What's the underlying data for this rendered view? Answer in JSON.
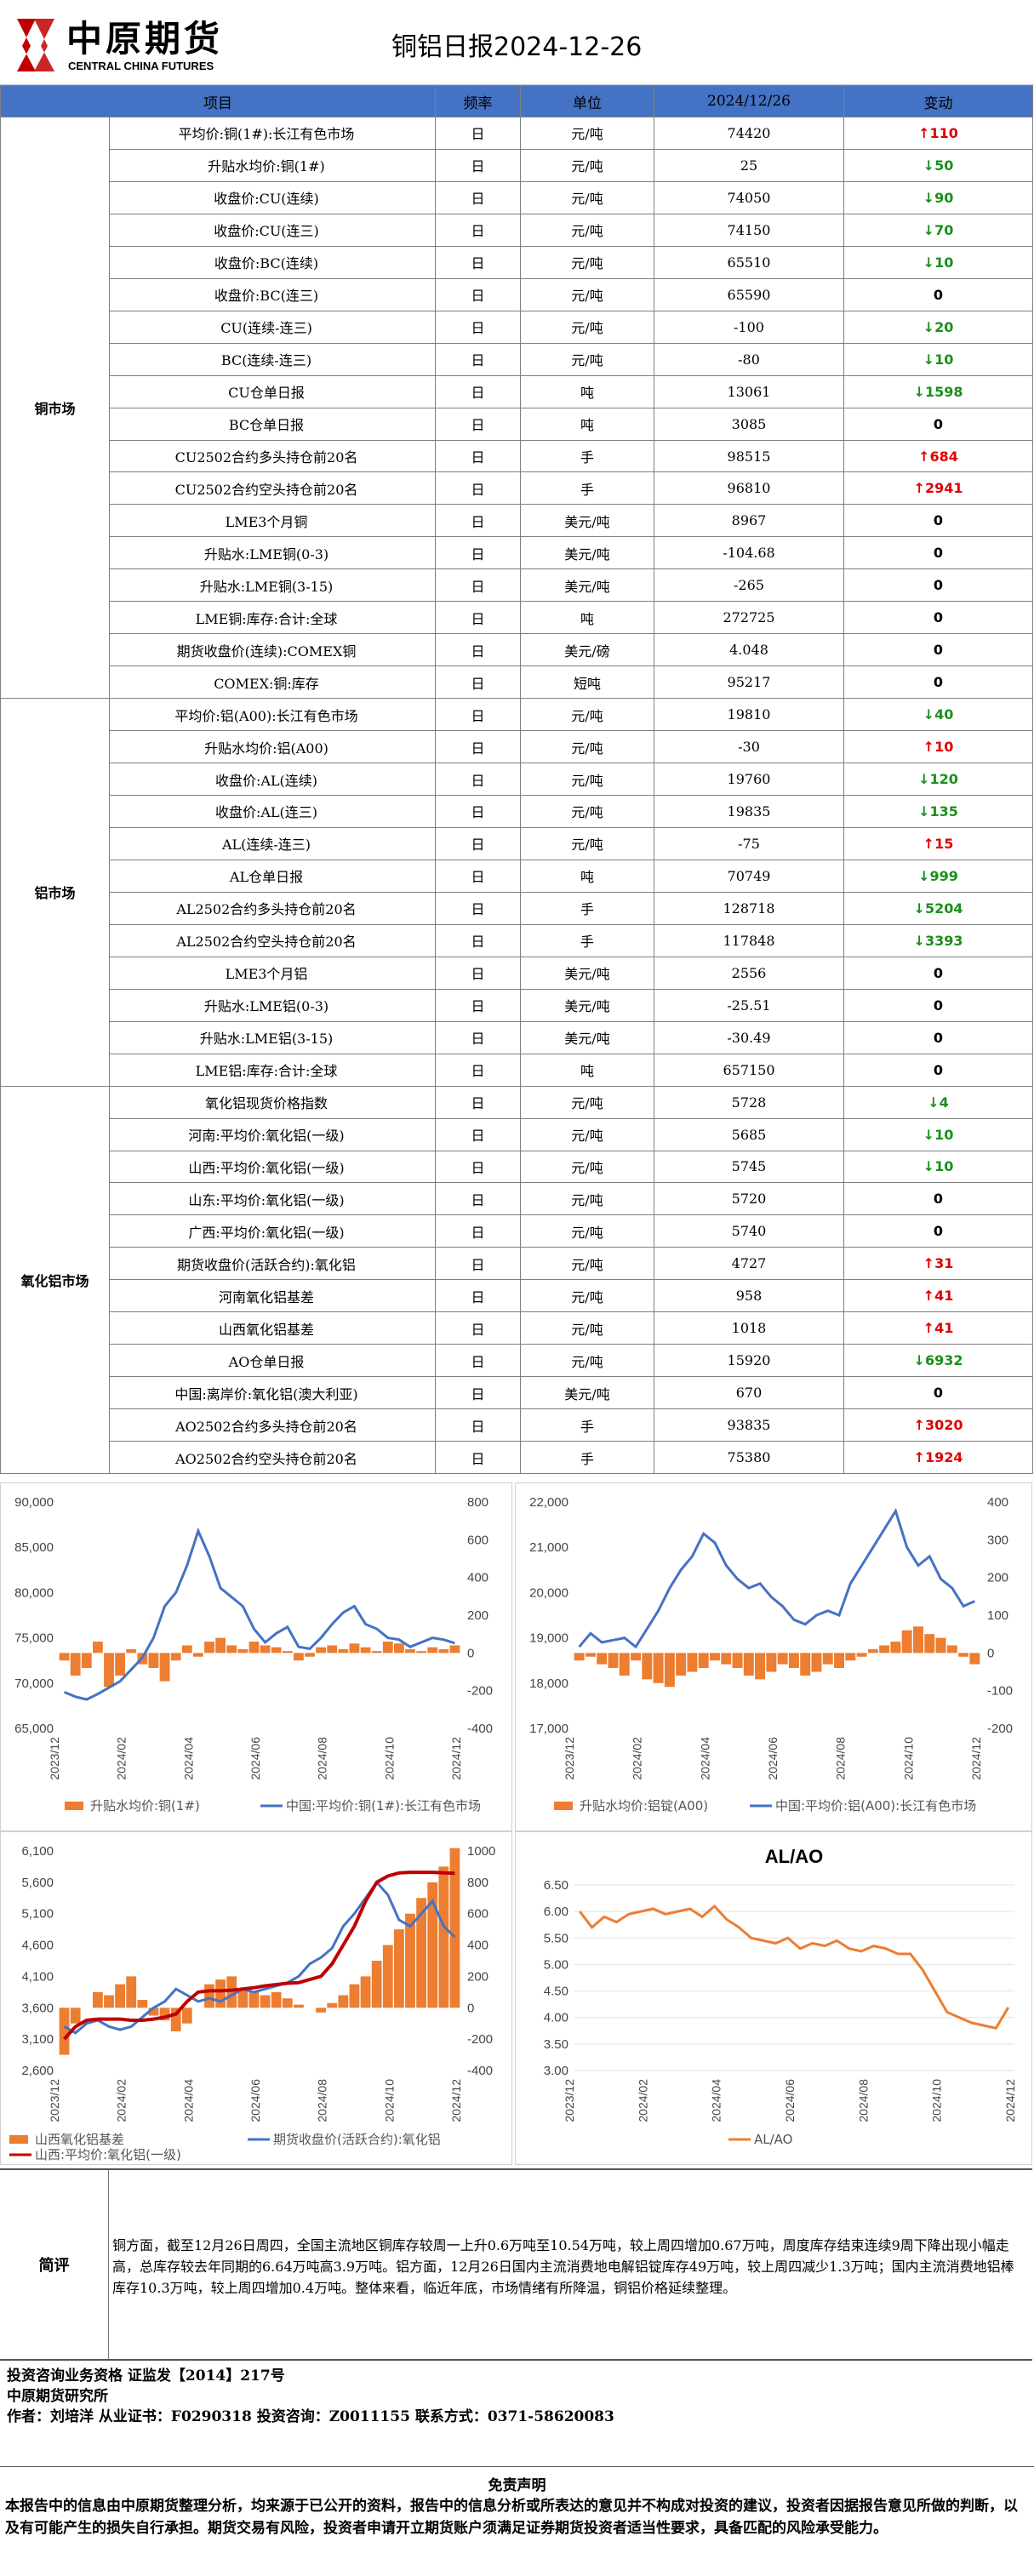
{
  "header": {
    "logo_cn": "中原期货",
    "logo_en": "CENTRAL CHINA FUTURES",
    "title": "铜铝日报2024-12-26"
  },
  "table": {
    "columns": [
      "项目",
      "频率",
      "单位",
      "2024/12/26",
      "变动"
    ],
    "groups": [
      {
        "name": "铜市场",
        "rows": [
          {
            "name": "平均价:铜(1#):长江有色市场",
            "freq": "日",
            "unit": "元/吨",
            "value": "74420",
            "dir": "up",
            "chg": "110"
          },
          {
            "name": "升贴水均价:铜(1#)",
            "freq": "日",
            "unit": "元/吨",
            "value": "25",
            "dir": "down",
            "chg": "50"
          },
          {
            "name": "收盘价:CU(连续)",
            "freq": "日",
            "unit": "元/吨",
            "value": "74050",
            "dir": "down",
            "chg": "90"
          },
          {
            "name": "收盘价:CU(连三)",
            "freq": "日",
            "unit": "元/吨",
            "value": "74150",
            "dir": "down",
            "chg": "70"
          },
          {
            "name": "收盘价:BC(连续)",
            "freq": "日",
            "unit": "元/吨",
            "value": "65510",
            "dir": "down",
            "chg": "10"
          },
          {
            "name": "收盘价:BC(连三)",
            "freq": "日",
            "unit": "元/吨",
            "value": "65590",
            "dir": "zero",
            "chg": "0"
          },
          {
            "name": "CU(连续-连三)",
            "freq": "日",
            "unit": "元/吨",
            "value": "-100",
            "dir": "down",
            "chg": "20"
          },
          {
            "name": "BC(连续-连三)",
            "freq": "日",
            "unit": "元/吨",
            "value": "-80",
            "dir": "down",
            "chg": "10"
          },
          {
            "name": "CU仓单日报",
            "freq": "日",
            "unit": "吨",
            "value": "13061",
            "dir": "down",
            "chg": "1598"
          },
          {
            "name": "BC仓单日报",
            "freq": "日",
            "unit": "吨",
            "value": "3085",
            "dir": "zero",
            "chg": "0"
          },
          {
            "name": "CU2502合约多头持仓前20名",
            "freq": "日",
            "unit": "手",
            "value": "98515",
            "dir": "up",
            "chg": "684"
          },
          {
            "name": "CU2502合约空头持仓前20名",
            "freq": "日",
            "unit": "手",
            "value": "96810",
            "dir": "up",
            "chg": "2941"
          },
          {
            "name": "LME3个月铜",
            "freq": "日",
            "unit": "美元/吨",
            "value": "8967",
            "dir": "zero",
            "chg": "0"
          },
          {
            "name": "升贴水:LME铜(0-3)",
            "freq": "日",
            "unit": "美元/吨",
            "value": "-104.68",
            "dir": "zero",
            "chg": "0"
          },
          {
            "name": "升贴水:LME铜(3-15)",
            "freq": "日",
            "unit": "美元/吨",
            "value": "-265",
            "dir": "zero",
            "chg": "0"
          },
          {
            "name": "LME铜:库存:合计:全球",
            "freq": "日",
            "unit": "吨",
            "value": "272725",
            "dir": "zero",
            "chg": "0"
          },
          {
            "name": "期货收盘价(连续):COMEX铜",
            "freq": "日",
            "unit": "美元/磅",
            "value": "4.048",
            "dir": "zero",
            "chg": "0"
          },
          {
            "name": "COMEX:铜:库存",
            "freq": "日",
            "unit": "短吨",
            "value": "95217",
            "dir": "zero",
            "chg": "0"
          }
        ]
      },
      {
        "name": "铝市场",
        "rows": [
          {
            "name": "平均价:铝(A00):长江有色市场",
            "freq": "日",
            "unit": "元/吨",
            "value": "19810",
            "dir": "down",
            "chg": "40"
          },
          {
            "name": "升贴水均价:铝(A00)",
            "freq": "日",
            "unit": "元/吨",
            "value": "-30",
            "dir": "up",
            "chg": "10"
          },
          {
            "name": "收盘价:AL(连续)",
            "freq": "日",
            "unit": "元/吨",
            "value": "19760",
            "dir": "down",
            "chg": "120"
          },
          {
            "name": "收盘价:AL(连三)",
            "freq": "日",
            "unit": "元/吨",
            "value": "19835",
            "dir": "down",
            "chg": "135"
          },
          {
            "name": "AL(连续-连三)",
            "freq": "日",
            "unit": "元/吨",
            "value": "-75",
            "dir": "up",
            "chg": "15"
          },
          {
            "name": "AL仓单日报",
            "freq": "日",
            "unit": "吨",
            "value": "70749",
            "dir": "down",
            "chg": "999"
          },
          {
            "name": "AL2502合约多头持仓前20名",
            "freq": "日",
            "unit": "手",
            "value": "128718",
            "dir": "down",
            "chg": "5204"
          },
          {
            "name": "AL2502合约空头持仓前20名",
            "freq": "日",
            "unit": "手",
            "value": "117848",
            "dir": "down",
            "chg": "3393"
          },
          {
            "name": "LME3个月铝",
            "freq": "日",
            "unit": "美元/吨",
            "value": "2556",
            "dir": "zero",
            "chg": "0"
          },
          {
            "name": "升贴水:LME铝(0-3)",
            "freq": "日",
            "unit": "美元/吨",
            "value": "-25.51",
            "dir": "zero",
            "chg": "0"
          },
          {
            "name": "升贴水:LME铝(3-15)",
            "freq": "日",
            "unit": "美元/吨",
            "value": "-30.49",
            "dir": "zero",
            "chg": "0"
          },
          {
            "name": "LME铝:库存:合计:全球",
            "freq": "日",
            "unit": "吨",
            "value": "657150",
            "dir": "zero",
            "chg": "0"
          }
        ]
      },
      {
        "name": "氧化铝市场",
        "rows": [
          {
            "name": "氧化铝现货价格指数",
            "freq": "日",
            "unit": "元/吨",
            "value": "5728",
            "dir": "down",
            "chg": "4"
          },
          {
            "name": "河南:平均价:氧化铝(一级)",
            "freq": "日",
            "unit": "元/吨",
            "value": "5685",
            "dir": "down",
            "chg": "10"
          },
          {
            "name": "山西:平均价:氧化铝(一级)",
            "freq": "日",
            "unit": "元/吨",
            "value": "5745",
            "dir": "down",
            "chg": "10"
          },
          {
            "name": "山东:平均价:氧化铝(一级)",
            "freq": "日",
            "unit": "元/吨",
            "value": "5720",
            "dir": "zero",
            "chg": "0"
          },
          {
            "name": "广西:平均价:氧化铝(一级)",
            "freq": "日",
            "unit": "元/吨",
            "value": "5740",
            "dir": "zero",
            "chg": "0"
          },
          {
            "name": "期货收盘价(活跃合约):氧化铝",
            "freq": "日",
            "unit": "元/吨",
            "value": "4727",
            "dir": "up",
            "chg": "31"
          },
          {
            "name": "河南氧化铝基差",
            "freq": "日",
            "unit": "元/吨",
            "value": "958",
            "dir": "up",
            "chg": "41"
          },
          {
            "name": "山西氧化铝基差",
            "freq": "日",
            "unit": "元/吨",
            "value": "1018",
            "dir": "up",
            "chg": "41"
          },
          {
            "name": "AO仓单日报",
            "freq": "日",
            "unit": "元/吨",
            "value": "15920",
            "dir": "down",
            "chg": "6932"
          },
          {
            "name": "中国:离岸价:氧化铝(澳大利亚)",
            "freq": "日",
            "unit": "美元/吨",
            "value": "670",
            "dir": "zero",
            "chg": "0"
          },
          {
            "name": "AO2502合约多头持仓前20名",
            "freq": "日",
            "unit": "手",
            "value": "93835",
            "dir": "up",
            "chg": "3020"
          },
          {
            "name": "AO2502合约空头持仓前20名",
            "freq": "日",
            "unit": "手",
            "value": "75380",
            "dir": "up",
            "chg": "1924"
          }
        ]
      }
    ]
  },
  "colors": {
    "header_blue": "#4472c4",
    "up": "#e00000",
    "down": "#1a8f1a",
    "bar_orange": "#ed7d31",
    "line_blue": "#4472c4",
    "line_red": "#c00000"
  },
  "chart_data": [
    {
      "type": "bar+line",
      "x_ticks": [
        "2023/12",
        "2024/02",
        "2024/04",
        "2024/06",
        "2024/08",
        "2024/10",
        "2024/12"
      ],
      "left_axis": [
        65000,
        70000,
        75000,
        80000,
        85000,
        90000
      ],
      "right_axis": [
        -400,
        -200,
        0,
        200,
        400,
        600,
        800
      ],
      "series": [
        {
          "name": "升贴水均价:铜(1#)",
          "type": "bar",
          "axis": "right",
          "values": [
            -40,
            -120,
            -80,
            60,
            -180,
            -120,
            20,
            -60,
            -80,
            -150,
            -40,
            40,
            -20,
            60,
            80,
            40,
            20,
            60,
            40,
            30,
            10,
            -40,
            -20,
            30,
            40,
            20,
            50,
            30,
            10,
            60,
            50,
            20,
            10,
            30,
            20,
            40
          ]
        },
        {
          "name": "中国:平均价:铜(1#):长江有色市场",
          "type": "line",
          "axis": "left",
          "values": [
            69000,
            68500,
            68200,
            68800,
            69500,
            70200,
            71500,
            72800,
            75000,
            78500,
            80000,
            83000,
            86800,
            84000,
            80500,
            79500,
            78500,
            76000,
            74500,
            75500,
            76200,
            74000,
            73800,
            75000,
            76500,
            77800,
            78500,
            76500,
            76000,
            75000,
            74800,
            74000,
            74500,
            75000,
            74800,
            74420
          ]
        }
      ],
      "ylim": [
        65000,
        90000
      ],
      "y2lim": [
        -400,
        800
      ]
    },
    {
      "type": "bar+line",
      "x_ticks": [
        "2023/12",
        "2024/02",
        "2024/04",
        "2024/06",
        "2024/08",
        "2024/10",
        "2024/12"
      ],
      "left_axis": [
        17000,
        18000,
        19000,
        20000,
        21000,
        22000
      ],
      "right_axis": [
        -200,
        -100,
        0,
        100,
        200,
        300,
        400
      ],
      "series": [
        {
          "name": "升贴水均价:铝锭(A00)",
          "type": "bar",
          "axis": "right",
          "values": [
            -20,
            -10,
            -30,
            -40,
            -60,
            -20,
            -70,
            -80,
            -90,
            -60,
            -50,
            -40,
            -20,
            -30,
            -40,
            -60,
            -70,
            -50,
            -30,
            -40,
            -60,
            -50,
            -30,
            -40,
            -20,
            -10,
            10,
            20,
            30,
            60,
            70,
            50,
            40,
            20,
            -10,
            -30
          ]
        },
        {
          "name": "中国:平均价:铝(A00):长江有色市场",
          "type": "line",
          "axis": "left",
          "values": [
            18800,
            19100,
            18900,
            18950,
            19000,
            18800,
            19200,
            19600,
            20100,
            20500,
            20800,
            21300,
            21100,
            20600,
            20300,
            20100,
            20200,
            19900,
            19700,
            19400,
            19300,
            19500,
            19600,
            19500,
            20200,
            20600,
            21000,
            21400,
            21800,
            21000,
            20600,
            20800,
            20300,
            20100,
            19700,
            19810
          ]
        }
      ],
      "ylim": [
        17000,
        22000
      ],
      "y2lim": [
        -200,
        400
      ]
    },
    {
      "type": "bar+line",
      "x_ticks": [
        "2023/12",
        "2024/02",
        "2024/04",
        "2024/06",
        "2024/08",
        "2024/10",
        "2024/12"
      ],
      "left_axis": [
        2600,
        3100,
        3600,
        4100,
        4600,
        5100,
        5600,
        6100
      ],
      "right_axis": [
        -400,
        -200,
        0,
        200,
        400,
        600,
        800,
        1000
      ],
      "series": [
        {
          "name": "山西氧化铝基差",
          "type": "bar",
          "axis": "right",
          "values": [
            -300,
            -100,
            0,
            100,
            80,
            150,
            200,
            50,
            -50,
            -80,
            -150,
            -100,
            0,
            150,
            180,
            200,
            120,
            100,
            80,
            100,
            60,
            20,
            0,
            -30,
            30,
            80,
            150,
            200,
            300,
            400,
            500,
            600,
            700,
            800,
            900,
            1018
          ]
        },
        {
          "name": "期货收盘价(活跃合约):氧化铝",
          "type": "line",
          "axis": "left",
          "values": [
            3300,
            3200,
            3350,
            3400,
            3300,
            3250,
            3300,
            3450,
            3600,
            3700,
            3900,
            3800,
            3700,
            3750,
            3700,
            3800,
            3900,
            3850,
            3900,
            3950,
            4000,
            4100,
            4300,
            4400,
            4550,
            4900,
            5100,
            5350,
            5600,
            5400,
            5000,
            4900,
            5100,
            5300,
            4900,
            4727
          ]
        },
        {
          "name": "山西:平均价:氧化铝(一级)",
          "type": "line",
          "axis": "left",
          "values": [
            3100,
            3300,
            3400,
            3420,
            3420,
            3420,
            3400,
            3400,
            3420,
            3450,
            3500,
            3700,
            3850,
            3870,
            3870,
            3880,
            3900,
            3920,
            3950,
            3970,
            3990,
            4000,
            4050,
            4100,
            4300,
            4600,
            4900,
            5300,
            5600,
            5700,
            5750,
            5760,
            5760,
            5760,
            5750,
            5745
          ]
        }
      ],
      "ylim": [
        2600,
        6100
      ],
      "y2lim": [
        -400,
        1000
      ]
    },
    {
      "type": "line",
      "title": "AL/AO",
      "x_ticks": [
        "2023/12",
        "2024/02",
        "2024/04",
        "2024/06",
        "2024/08",
        "2024/10",
        "2024/12"
      ],
      "left_axis": [
        3.0,
        3.5,
        4.0,
        4.5,
        5.0,
        5.5,
        6.0,
        6.5
      ],
      "series": [
        {
          "name": "AL/AO",
          "values": [
            6.0,
            5.7,
            5.9,
            5.8,
            5.95,
            6.0,
            6.05,
            5.95,
            6.0,
            6.05,
            5.9,
            6.1,
            5.85,
            5.7,
            5.5,
            5.45,
            5.4,
            5.5,
            5.3,
            5.4,
            5.35,
            5.45,
            5.3,
            5.25,
            5.35,
            5.3,
            5.2,
            5.2,
            4.9,
            4.5,
            4.1,
            4.0,
            3.9,
            3.85,
            3.8,
            4.19
          ]
        }
      ],
      "ylim": [
        3.0,
        6.5
      ]
    }
  ],
  "comment": {
    "label": "简评",
    "text": "铜方面，截至12月26日周四，全国主流地区铜库存较周一上升0.6万吨至10.54万吨，较上周四增加0.67万吨，周度库存结束连续9周下降出现小幅走高，总库存较去年同期的6.64万吨高3.9万吨。铝方面，12月26日国内主流消费地电解铝锭库存49万吨，较上周四减少1.3万吨；国内主流消费地铝棒库存10.3万吨，较上周四增加0.4万吨。整体来看，临近年底，市场情绪有所降温，铜铝价格延续整理。"
  },
  "footer": {
    "line1": "投资咨询业务资格   证监发【2014】217号",
    "line2": "中原期货研究所",
    "line3": "作者：刘培洋      从业证书：F0290318      投资咨询：Z0011155      联系方式：0371-58620083"
  },
  "disclaimer": {
    "title": "免责声明",
    "text": "本报告中的信息由中原期货整理分析，均来源于已公开的资料，报告中的信息分析或所表达的意见并不构成对投资的建议，投资者因据报告意见所做的判断，以及有可能产生的损失自行承担。期货交易有风险，投资者申请开立期货账户须满足证券期货投资者适当性要求，具备匹配的风险承受能力。"
  }
}
